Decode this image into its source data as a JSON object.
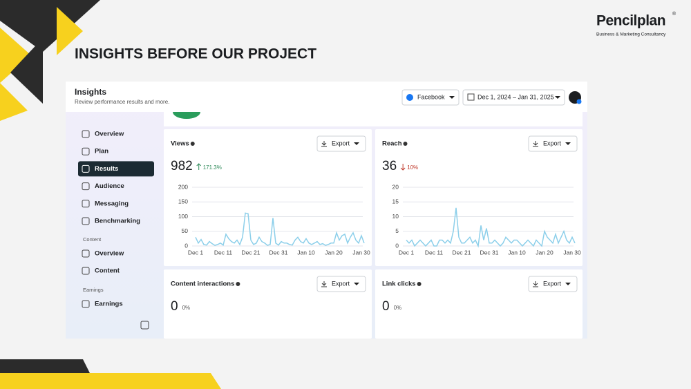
{
  "brand": {
    "name": "Pencilplan",
    "mark": "®",
    "tagline": "Business & Marketing Consultancy"
  },
  "slide_title": "INSIGHTS BEFORE OUR PROJECT",
  "header": {
    "title": "Insights",
    "subtitle": "Review performance results and more.",
    "platform": "Facebook",
    "date_range": "Dec 1, 2024 – Jan 31, 2025"
  },
  "sidebar": {
    "items": [
      "Overview",
      "Plan",
      "Results",
      "Audience",
      "Messaging",
      "Benchmarking"
    ],
    "content_heading": "Content",
    "content_items": [
      "Overview",
      "Content"
    ],
    "earnings_heading": "Earnings",
    "earnings_items": [
      "Earnings"
    ]
  },
  "cards": [
    {
      "title": "Views",
      "export": "Export",
      "value": "982",
      "change": "171.3%"
    },
    {
      "title": "Reach",
      "export": "Export",
      "value": "36",
      "change": "10%"
    },
    {
      "title": "Content interactions",
      "export": "Export",
      "value": "0",
      "change": "0%"
    },
    {
      "title": "Link clicks",
      "export": "Export",
      "value": "0",
      "change": "0%"
    }
  ],
  "chart_data": [
    {
      "type": "line",
      "categories": [
        "Dec 1",
        null,
        null,
        null,
        null,
        null,
        null,
        null,
        null,
        null,
        "Dec 11",
        null,
        null,
        null,
        null,
        null,
        null,
        null,
        null,
        null,
        "Dec 21",
        null,
        null,
        null,
        null,
        null,
        null,
        null,
        null,
        null,
        "Dec 31",
        null,
        null,
        null,
        null,
        null,
        null,
        null,
        null,
        null,
        "Jan 10",
        null,
        null,
        null,
        null,
        null,
        null,
        null,
        null,
        null,
        "Jan 20",
        null,
        null,
        null,
        null,
        null,
        null,
        null,
        null,
        null,
        "Jan 30",
        null
      ],
      "series": [
        {
          "color": "#8ccfea",
          "values": [
            30,
            10,
            22,
            5,
            3,
            15,
            8,
            2,
            5,
            10,
            3,
            40,
            25,
            15,
            10,
            20,
            5,
            30,
            112,
            110,
            20,
            5,
            10,
            30,
            15,
            10,
            2,
            5,
            95,
            10,
            3,
            15,
            10,
            10,
            5,
            3,
            20,
            30,
            15,
            10,
            25,
            10,
            5,
            10,
            15,
            5,
            8,
            2,
            5,
            10,
            10,
            45,
            20,
            35,
            40,
            10,
            30,
            45,
            20,
            10,
            35,
            10
          ]
        }
      ],
      "ylim": [
        0,
        200
      ],
      "yticks": [
        0,
        50,
        100,
        150,
        200
      ],
      "grid": true
    },
    {
      "type": "line",
      "categories": [
        "Dec 1",
        null,
        null,
        null,
        null,
        null,
        null,
        null,
        null,
        null,
        "Dec 11",
        null,
        null,
        null,
        null,
        null,
        null,
        null,
        null,
        null,
        "Dec 21",
        null,
        null,
        null,
        null,
        null,
        null,
        null,
        null,
        null,
        "Dec 31",
        null,
        null,
        null,
        null,
        null,
        null,
        null,
        null,
        null,
        "Jan 10",
        null,
        null,
        null,
        null,
        null,
        null,
        null,
        null,
        null,
        "Jan 20",
        null,
        null,
        null,
        null,
        null,
        null,
        null,
        null,
        null,
        "Jan 30",
        null
      ],
      "series": [
        {
          "color": "#8ccfea",
          "values": [
            2,
            1,
            2,
            0,
            1,
            2,
            1,
            0,
            1,
            2,
            0,
            0,
            2,
            2,
            1,
            2,
            1,
            5,
            13,
            3,
            1,
            1,
            2,
            3,
            1,
            2,
            0,
            7,
            2,
            6,
            1,
            1,
            2,
            1,
            0,
            1,
            3,
            2,
            1,
            2,
            2,
            1,
            0,
            1,
            2,
            1,
            0,
            2,
            1,
            0,
            5,
            3,
            2,
            1,
            4,
            1,
            3,
            5,
            2,
            1,
            3,
            1
          ]
        }
      ],
      "ylim": [
        0,
        20
      ],
      "yticks": [
        0,
        5,
        10,
        15,
        20
      ],
      "grid": true
    }
  ]
}
